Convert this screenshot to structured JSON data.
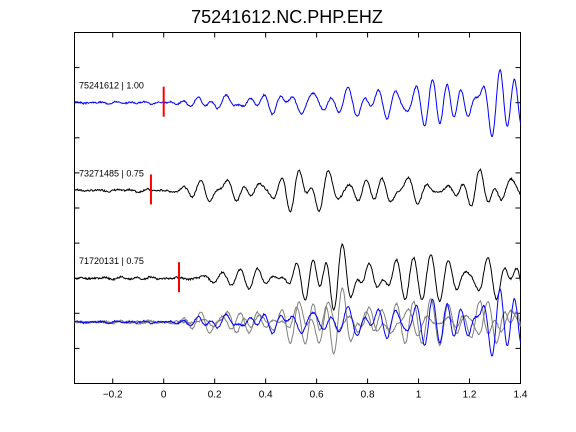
{
  "chart_data": {
    "type": "line",
    "title": "75241612.NC.PHP.EHZ",
    "xlabel": "",
    "ylabel": "",
    "xlim": [
      -0.35,
      1.4
    ],
    "xticks": [
      -0.2,
      0,
      0.2,
      0.4,
      0.6,
      0.8,
      1,
      1.2,
      1.4
    ],
    "xtick_labels": [
      "−0.2",
      "0",
      "0.2",
      "0.4",
      "0.6",
      "0.8",
      "1",
      "1.2",
      "1.4"
    ],
    "ytick_count": 10,
    "grid": false,
    "legend": "none",
    "colors": {
      "reference": "#0000ff",
      "similar": "#000000",
      "overlay": "#808080",
      "marker": "#ff0000"
    },
    "traces": [
      {
        "label": "75241612 | 1.00",
        "color": "#0000ff",
        "pick": 0.0,
        "baseline": 0.6,
        "seed": 3,
        "onset": 0.02,
        "amp": 0.42,
        "t": [],
        "v": []
      },
      {
        "label": "73271485 | 0.75",
        "color": "#000000",
        "pick": -0.05,
        "baseline": 2.6,
        "seed": 7,
        "onset": 0.0,
        "amp": 0.5,
        "t": [],
        "v": []
      },
      {
        "label": "71720131 | 0.75",
        "color": "#000000",
        "pick": 0.06,
        "baseline": 4.6,
        "seed": 11,
        "onset": 0.08,
        "amp": 0.5,
        "t": [],
        "v": []
      }
    ],
    "overlay_baseline": 6.6
  }
}
